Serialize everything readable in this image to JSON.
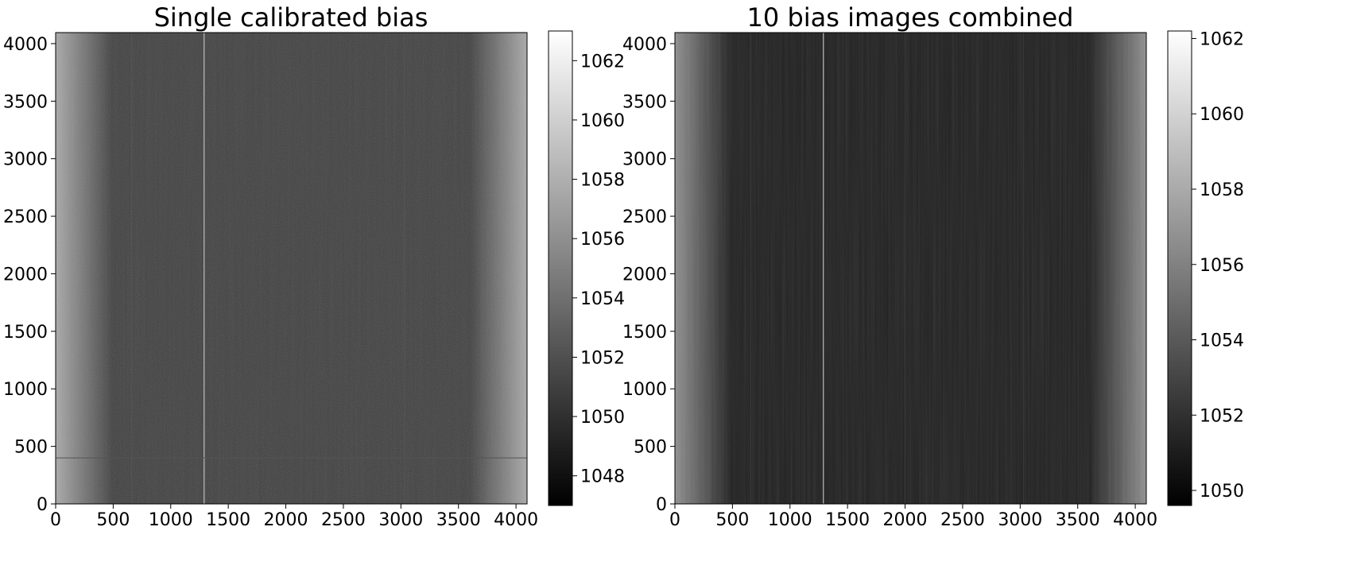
{
  "chart_data": [
    {
      "type": "heatmap",
      "title": "Single calibrated bias",
      "xlabel": "",
      "ylabel": "",
      "xlim": [
        0,
        4096
      ],
      "ylim": [
        0,
        4096
      ],
      "xticks": [
        0,
        500,
        1000,
        1500,
        2000,
        2500,
        3000,
        3500,
        4000
      ],
      "yticks": [
        0,
        500,
        1000,
        1500,
        2000,
        2500,
        3000,
        3500,
        4000
      ],
      "colormap": "gray",
      "colorbar": {
        "range": [
          1047,
          1063
        ],
        "ticks": [
          1048,
          1050,
          1052,
          1054,
          1056,
          1058,
          1060,
          1062
        ]
      },
      "features": {
        "edge_brightening": "left and right edges brighter",
        "bright_column_x": 1290,
        "faint_columns_x": [
          660,
          3030
        ],
        "faint_row_y": 400
      }
    },
    {
      "type": "heatmap",
      "title": "10 bias images combined",
      "xlabel": "",
      "ylabel": "",
      "xlim": [
        0,
        4096
      ],
      "ylim": [
        0,
        4096
      ],
      "xticks": [
        0,
        500,
        1000,
        1500,
        2000,
        2500,
        3000,
        3500,
        4000
      ],
      "yticks": [
        0,
        500,
        1000,
        1500,
        2000,
        2500,
        3000,
        3500,
        4000
      ],
      "colormap": "gray",
      "colorbar": {
        "range": [
          1049.6,
          1062.2
        ],
        "ticks": [
          1050,
          1052,
          1054,
          1056,
          1058,
          1060,
          1062
        ]
      },
      "features": {
        "edge_brightening": "left and right edges brighter",
        "bright_column_x": 1290,
        "faint_columns_x": [
          660,
          2000,
          3030
        ],
        "faint_row_y": null
      }
    }
  ]
}
